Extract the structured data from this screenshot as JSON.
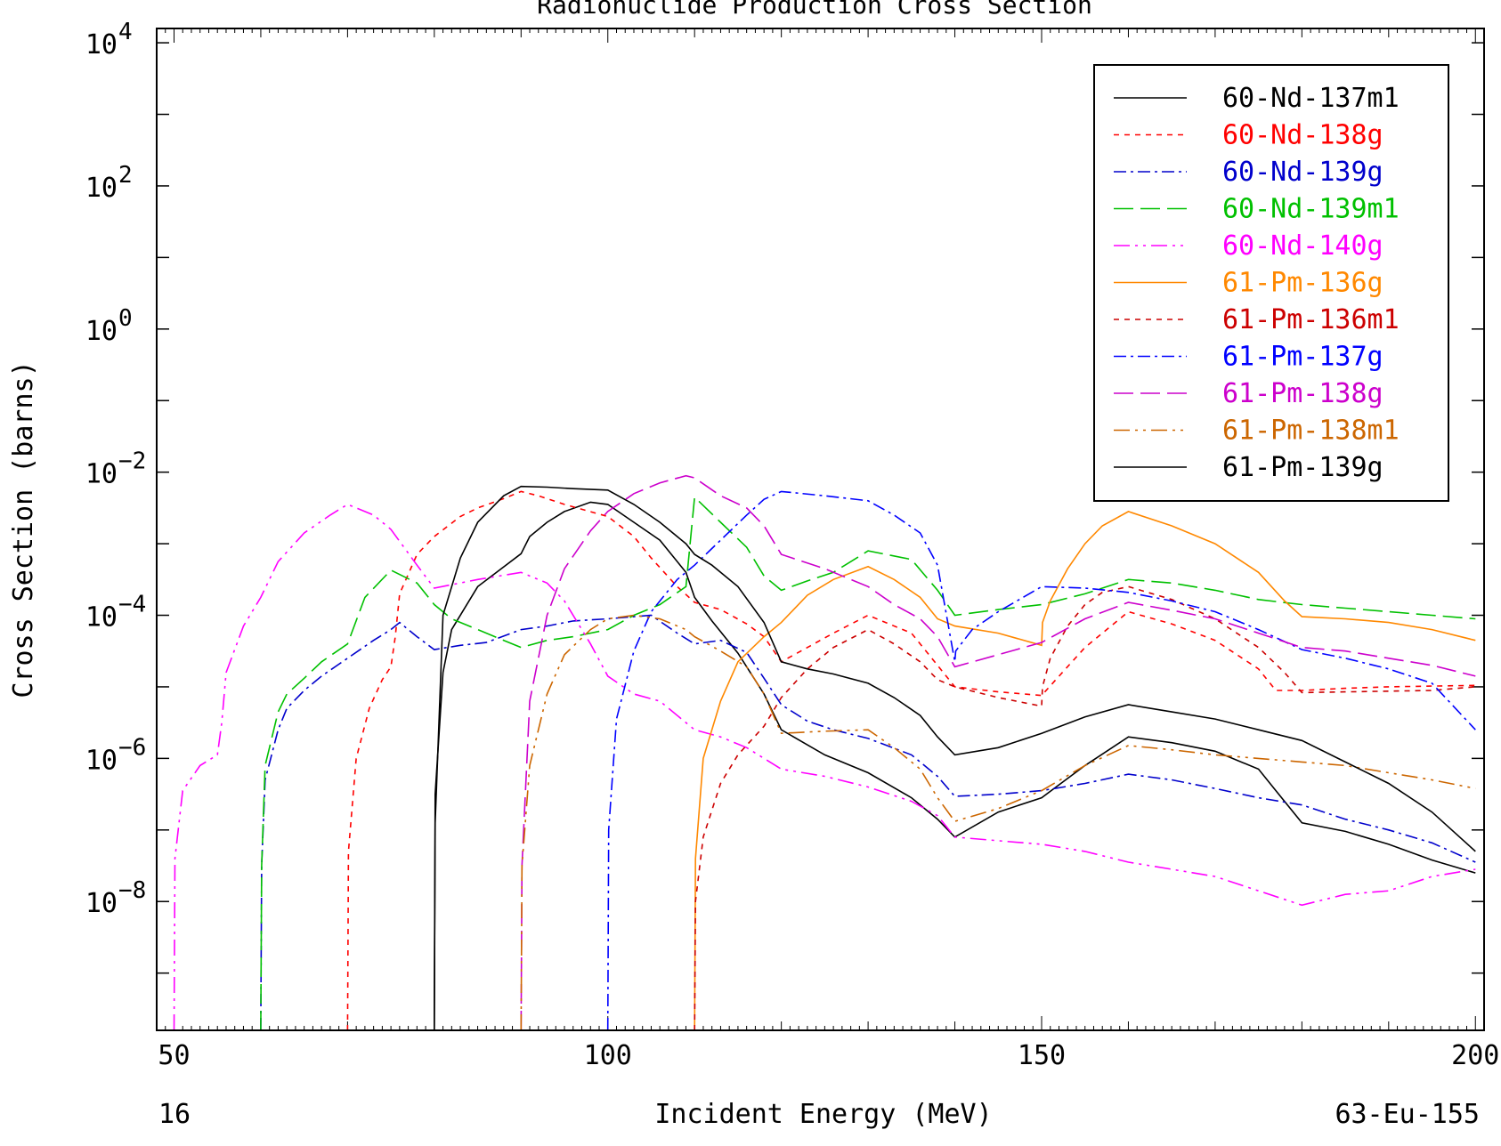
{
  "chart_data": {
    "type": "line",
    "title": "Radionuclide Production Cross Section",
    "xlabel": "Incident Energy (MeV)",
    "ylabel": "Cross Section (barns)",
    "corner_left": "16",
    "corner_right": "63-Eu-155",
    "xlim": [
      48,
      201
    ],
    "x_ticks": [
      50,
      100,
      150,
      200
    ],
    "y_scale": "log",
    "ylim_log10": [
      -9.8,
      4.2
    ],
    "y_tick_exponents": [
      -8,
      -6,
      -4,
      -2,
      0,
      2,
      4
    ],
    "y_tick_base": "10",
    "legend_position": "top-right",
    "series": [
      {
        "name": "60-Nd-137m1",
        "color": "#000000",
        "dash": "solid",
        "x": [
          80,
          80.1,
          81,
          82,
          85,
          90,
          91,
          93,
          95,
          98,
          100,
          103,
          106,
          109,
          110,
          112,
          115,
          118,
          120,
          125,
          130,
          135,
          138,
          140,
          145,
          150,
          155,
          160,
          165,
          170,
          175,
          177,
          180,
          185,
          190,
          195,
          200
        ],
        "y": [
          -9.8,
          -6.5,
          -4.8,
          -4.2,
          -3.6,
          -3.14,
          -2.9,
          -2.7,
          -2.55,
          -2.42,
          -2.45,
          -2.7,
          -2.95,
          -3.4,
          -3.75,
          -4.08,
          -4.53,
          -5.1,
          -5.6,
          -5.95,
          -6.2,
          -6.55,
          -6.85,
          -7.1,
          -6.75,
          -6.55,
          -6.1,
          -5.7,
          -5.78,
          -5.9,
          -6.15,
          -6.45,
          -6.9,
          -7.02,
          -7.2,
          -7.42,
          -7.6
        ]
      },
      {
        "name": "60-Nd-138g",
        "color": "#ff0000",
        "dash": "6,6",
        "x": [
          70,
          70.1,
          71,
          72.5,
          74,
          75,
          75.5,
          76,
          78,
          80,
          83,
          85,
          88,
          90,
          92,
          95,
          100,
          103,
          105,
          108,
          110,
          113,
          116,
          118,
          120,
          123,
          126,
          130,
          135,
          138,
          140,
          145,
          150,
          155,
          160,
          165,
          170,
          175,
          177,
          180,
          185,
          190,
          195,
          200
        ],
        "y": [
          -9.8,
          -7.3,
          -6.0,
          -5.3,
          -4.9,
          -4.72,
          -4.3,
          -3.7,
          -3.15,
          -2.9,
          -2.62,
          -2.5,
          -2.37,
          -2.27,
          -2.33,
          -2.45,
          -2.62,
          -2.9,
          -3.2,
          -3.6,
          -3.82,
          -3.92,
          -4.12,
          -4.3,
          -4.65,
          -4.45,
          -4.25,
          -4.0,
          -4.25,
          -4.7,
          -5.0,
          -5.07,
          -5.12,
          -4.45,
          -3.95,
          -4.12,
          -4.35,
          -4.75,
          -5.05,
          -5.05,
          -5.02,
          -5.0,
          -4.99,
          -4.98
        ]
      },
      {
        "name": "60-Nd-139g",
        "color": "#0000cc",
        "dash": "14,5,3,5",
        "x": [
          60,
          60.1,
          60.5,
          62,
          63,
          65,
          67,
          70,
          73,
          75,
          76,
          78,
          80,
          83,
          86,
          90,
          93,
          96,
          100,
          105,
          108,
          110,
          113,
          116,
          118,
          120,
          123,
          126,
          130,
          135,
          138,
          140,
          145,
          150,
          155,
          160,
          165,
          170,
          175,
          180,
          185,
          190,
          195,
          200
        ],
        "y": [
          -9.8,
          -7.5,
          -6.3,
          -5.6,
          -5.3,
          -5.05,
          -4.85,
          -4.6,
          -4.35,
          -4.2,
          -4.1,
          -4.3,
          -4.48,
          -4.42,
          -4.38,
          -4.2,
          -4.15,
          -4.08,
          -4.05,
          -4.0,
          -4.25,
          -4.4,
          -4.35,
          -4.52,
          -4.88,
          -5.25,
          -5.48,
          -5.6,
          -5.72,
          -5.95,
          -6.25,
          -6.53,
          -6.5,
          -6.45,
          -6.35,
          -6.22,
          -6.3,
          -6.42,
          -6.55,
          -6.65,
          -6.85,
          -7.0,
          -7.18,
          -7.45
        ]
      },
      {
        "name": "60-Nd-139m1",
        "color": "#00c000",
        "dash": "22,8",
        "x": [
          60,
          60.1,
          60.5,
          62,
          63,
          65,
          67,
          70,
          72,
          75,
          78,
          80,
          82,
          85,
          88,
          90,
          93,
          96,
          100,
          103,
          106,
          109,
          110,
          113,
          116,
          118,
          120,
          123,
          126,
          130,
          135,
          138,
          140,
          145,
          150,
          155,
          160,
          165,
          170,
          175,
          180,
          185,
          190,
          195,
          200
        ],
        "y": [
          -9.8,
          -7.5,
          -6.1,
          -5.35,
          -5.1,
          -4.88,
          -4.65,
          -4.4,
          -3.75,
          -3.37,
          -3.55,
          -3.85,
          -4.05,
          -4.2,
          -4.35,
          -4.45,
          -4.35,
          -4.3,
          -4.2,
          -4.0,
          -3.85,
          -3.6,
          -2.35,
          -2.7,
          -3.05,
          -3.45,
          -3.65,
          -3.52,
          -3.4,
          -3.1,
          -3.22,
          -3.65,
          -4.0,
          -3.92,
          -3.85,
          -3.7,
          -3.5,
          -3.55,
          -3.65,
          -3.78,
          -3.85,
          -3.9,
          -3.95,
          -4.0,
          -4.05
        ]
      },
      {
        "name": "60-Nd-140g",
        "color": "#ff00ff",
        "dash": "18,6,3,6,3,6",
        "x": [
          50,
          50.1,
          51,
          53,
          55,
          55.5,
          56,
          58,
          60,
          62,
          65,
          68,
          70,
          73,
          75,
          78,
          80,
          85,
          90,
          93,
          95,
          98,
          100,
          103,
          106,
          110,
          113,
          116,
          118,
          120,
          125,
          130,
          135,
          138,
          140,
          145,
          150,
          155,
          160,
          165,
          170,
          175,
          180,
          185,
          190,
          195,
          200
        ],
        "y": [
          -9.8,
          -7.4,
          -6.45,
          -6.1,
          -5.95,
          -5.5,
          -4.8,
          -4.15,
          -3.75,
          -3.25,
          -2.85,
          -2.6,
          -2.45,
          -2.6,
          -2.8,
          -3.3,
          -3.62,
          -3.5,
          -3.4,
          -3.55,
          -3.8,
          -4.4,
          -4.85,
          -5.1,
          -5.2,
          -5.6,
          -5.7,
          -5.85,
          -6.0,
          -6.15,
          -6.25,
          -6.4,
          -6.6,
          -6.8,
          -7.1,
          -7.15,
          -7.2,
          -7.3,
          -7.45,
          -7.55,
          -7.65,
          -7.85,
          -8.05,
          -7.9,
          -7.85,
          -7.65,
          -7.55
        ]
      },
      {
        "name": "61-Pm-136g",
        "color": "#ff8800",
        "dash": "solid",
        "x": [
          110,
          110.1,
          111,
          113,
          115,
          118,
          120,
          123,
          126,
          130,
          133,
          136,
          138,
          140,
          145,
          150,
          150.1,
          151,
          153,
          155,
          157,
          160,
          165,
          170,
          175,
          178,
          180,
          185,
          190,
          195,
          200
        ],
        "y": [
          -9.8,
          -7.4,
          -6.0,
          -5.2,
          -4.65,
          -4.3,
          -4.1,
          -3.72,
          -3.5,
          -3.32,
          -3.5,
          -3.75,
          -4.05,
          -4.15,
          -4.25,
          -4.42,
          -4.1,
          -3.8,
          -3.35,
          -3.0,
          -2.75,
          -2.55,
          -2.75,
          -3.0,
          -3.4,
          -3.8,
          -4.02,
          -4.05,
          -4.1,
          -4.2,
          -4.35
        ]
      },
      {
        "name": "61-Pm-136m1",
        "color": "#cc0000",
        "dash": "6,6",
        "x": [
          110,
          110.1,
          111,
          113,
          115,
          118,
          120,
          123,
          126,
          130,
          133,
          136,
          138,
          140,
          145,
          150,
          150.1,
          151,
          153,
          155,
          157,
          160,
          165,
          170,
          175,
          178,
          180,
          185,
          190,
          195,
          200
        ],
        "y": [
          -9.8,
          -8.0,
          -7.1,
          -6.35,
          -5.95,
          -5.55,
          -5.15,
          -4.75,
          -4.45,
          -4.2,
          -4.4,
          -4.65,
          -4.9,
          -5.0,
          -5.15,
          -5.27,
          -5.0,
          -4.6,
          -4.15,
          -3.85,
          -3.68,
          -3.6,
          -3.78,
          -4.05,
          -4.45,
          -4.8,
          -5.08,
          -5.07,
          -5.06,
          -5.05,
          -5.0
        ]
      },
      {
        "name": "61-Pm-137g",
        "color": "#0000ff",
        "dash": "14,5,3,5",
        "x": [
          100,
          100.1,
          101,
          103,
          105,
          108,
          110,
          113,
          116,
          118,
          120,
          125,
          130,
          133,
          136,
          138,
          140,
          140.1,
          142,
          145,
          150,
          155,
          160,
          165,
          170,
          175,
          180,
          185,
          190,
          195,
          200
        ],
        "y": [
          -9.8,
          -7.0,
          -5.45,
          -4.5,
          -3.95,
          -3.5,
          -3.3,
          -2.95,
          -2.6,
          -2.38,
          -2.27,
          -2.33,
          -2.4,
          -2.6,
          -2.85,
          -3.3,
          -4.65,
          -4.5,
          -4.2,
          -3.95,
          -3.6,
          -3.62,
          -3.68,
          -3.8,
          -3.95,
          -4.2,
          -4.48,
          -4.6,
          -4.75,
          -4.95,
          -5.6
        ]
      },
      {
        "name": "61-Pm-138g",
        "color": "#cc00cc",
        "dash": "22,8",
        "x": [
          90,
          90.1,
          91,
          93,
          95,
          98,
          100,
          103,
          106,
          109,
          110,
          113,
          116,
          118,
          120,
          125,
          130,
          133,
          136,
          138,
          140,
          145,
          150,
          155,
          160,
          165,
          170,
          175,
          180,
          185,
          190,
          195,
          200
        ],
        "y": [
          -9.8,
          -7.5,
          -5.2,
          -4.0,
          -3.35,
          -2.82,
          -2.55,
          -2.3,
          -2.15,
          -2.05,
          -2.08,
          -2.33,
          -2.5,
          -2.75,
          -3.15,
          -3.35,
          -3.6,
          -3.85,
          -4.05,
          -4.3,
          -4.72,
          -4.55,
          -4.38,
          -4.05,
          -3.82,
          -3.93,
          -4.05,
          -4.25,
          -4.45,
          -4.5,
          -4.6,
          -4.7,
          -4.85
        ]
      },
      {
        "name": "61-Pm-138m1",
        "color": "#cc6600",
        "dash": "18,6,3,6,3,6",
        "x": [
          90,
          90.1,
          91,
          93,
          95,
          98,
          100,
          103,
          106,
          109,
          110,
          113,
          116,
          118,
          120,
          125,
          130,
          133,
          136,
          138,
          140,
          145,
          150,
          155,
          160,
          165,
          170,
          175,
          180,
          185,
          190,
          195,
          200
        ],
        "y": [
          -9.8,
          -7.5,
          -6.1,
          -5.1,
          -4.55,
          -4.2,
          -4.05,
          -4.0,
          -4.05,
          -4.2,
          -4.3,
          -4.5,
          -4.72,
          -5.1,
          -5.65,
          -5.62,
          -5.6,
          -5.85,
          -6.15,
          -6.55,
          -6.88,
          -6.7,
          -6.45,
          -6.1,
          -5.82,
          -5.88,
          -5.95,
          -6.0,
          -6.05,
          -6.1,
          -6.2,
          -6.3,
          -6.42
        ]
      },
      {
        "name": "61-Pm-139g",
        "color": "#000000",
        "dash": "solid",
        "x": [
          80,
          80.1,
          81,
          83,
          85,
          88,
          90,
          93,
          96,
          100,
          103,
          106,
          109,
          110,
          112,
          115,
          118,
          120,
          123,
          126,
          130,
          133,
          136,
          138,
          140,
          145,
          150,
          155,
          160,
          165,
          170,
          175,
          180,
          185,
          190,
          195,
          200
        ],
        "y": [
          -9.8,
          -6.9,
          -4.0,
          -3.2,
          -2.7,
          -2.33,
          -2.2,
          -2.21,
          -2.23,
          -2.25,
          -2.45,
          -2.7,
          -3.0,
          -3.15,
          -3.3,
          -3.6,
          -4.1,
          -4.65,
          -4.75,
          -4.82,
          -4.95,
          -5.15,
          -5.4,
          -5.7,
          -5.95,
          -5.85,
          -5.65,
          -5.42,
          -5.25,
          -5.35,
          -5.45,
          -5.6,
          -5.75,
          -6.05,
          -6.35,
          -6.75,
          -7.3
        ]
      }
    ]
  }
}
